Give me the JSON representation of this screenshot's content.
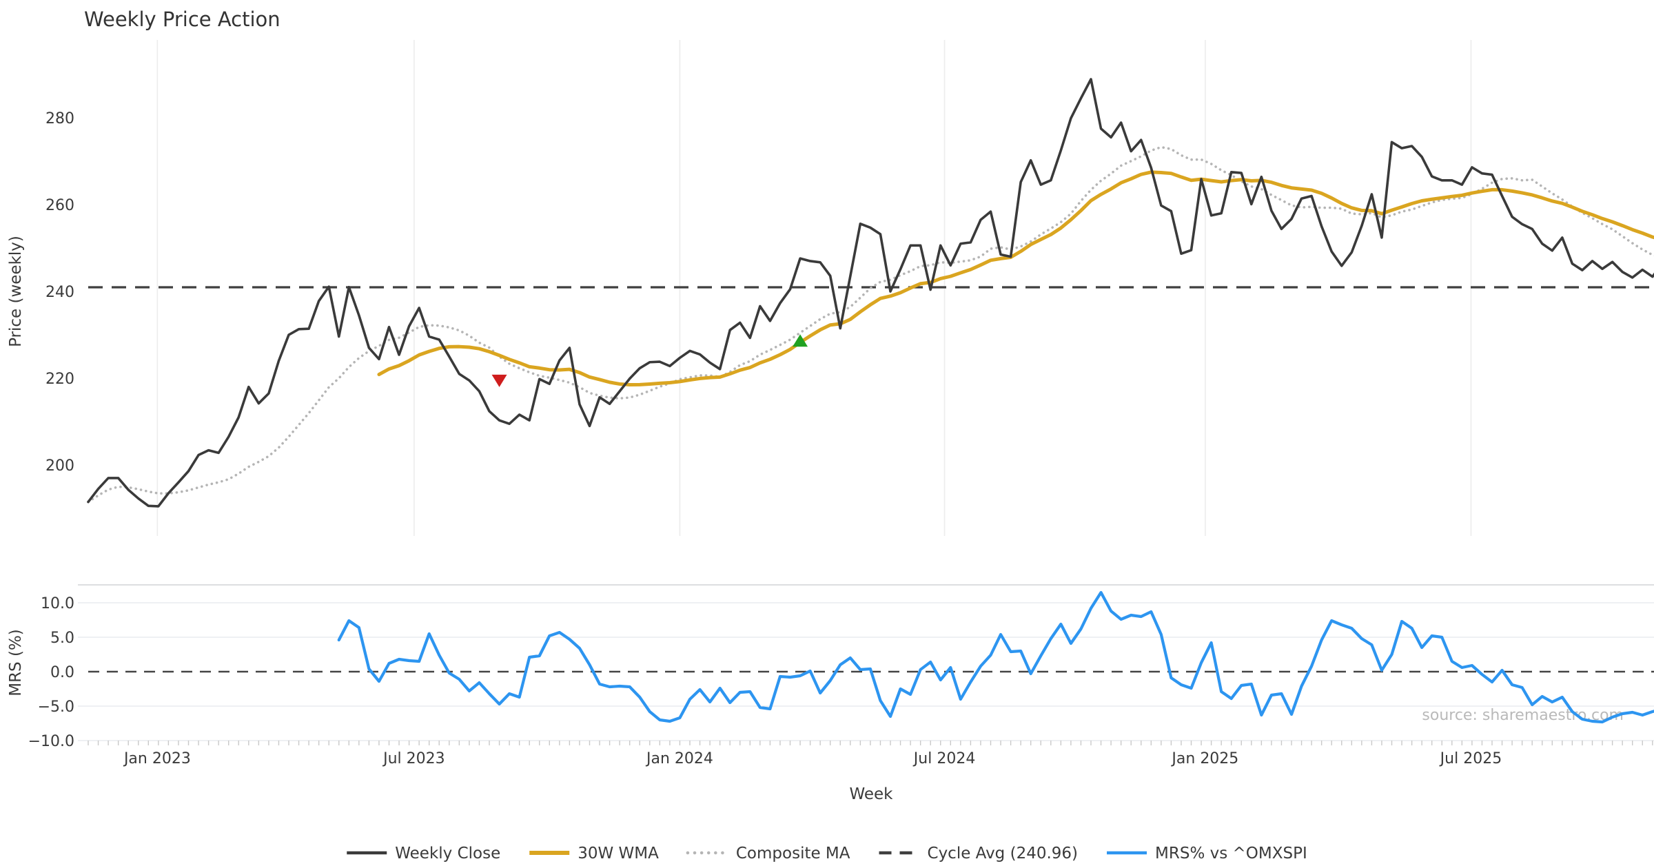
{
  "title": "Weekly Price Action",
  "source_note": "source: sharemaestro.com",
  "colors": {
    "weekly_close": "#3a3a3a",
    "wma30": "#DAA520",
    "composite_ma": "#b5b5b5",
    "cycle_avg": "#3f3f3f",
    "mrs": "#2d95f0",
    "sell_marker": "#cf1d1d",
    "buy_marker": "#21a121",
    "grid": "#ececec"
  },
  "legend": [
    {
      "label": "Weekly Close",
      "style": "solid",
      "color": "#3a3a3a"
    },
    {
      "label": "30W WMA",
      "style": "solid",
      "color": "#DAA520"
    },
    {
      "label": "Composite MA",
      "style": "dotted",
      "color": "#b5b5b5"
    },
    {
      "label": "Cycle Avg (240.96)",
      "style": "dashed",
      "color": "#3f3f3f"
    },
    {
      "label": "MRS% vs ^OMXSPI",
      "style": "solid",
      "color": "#2d95f0"
    }
  ],
  "chart_data": [
    {
      "type": "line",
      "title": "Weekly Price Action",
      "ylabel": "Price (weekly)",
      "frequency": "weekly",
      "start_date": "2022-11-14",
      "yticks": [
        200,
        220,
        240,
        260,
        280
      ],
      "ylim": [
        183,
        298
      ],
      "x_tick_labels": [
        "Jan 2023",
        "Jul 2023",
        "Jan 2024",
        "Jul 2024",
        "Jan 2025",
        "Jul 2025"
      ],
      "x_tick_weeks": [
        6.9,
        32.5,
        59.0,
        85.4,
        111.4,
        137.9
      ],
      "grid": "vertical-only",
      "legend_position": "lower center",
      "cycle_avg": 240.96,
      "series": [
        {
          "name": "Weekly Close",
          "values": [
            191.5,
            194.5,
            197.0,
            197.0,
            194.3,
            192.3,
            190.6,
            190.5,
            193.5,
            196.0,
            198.6,
            202.3,
            203.4,
            202.8,
            206.5,
            211.0,
            218.0,
            214.2,
            216.5,
            224.0,
            230.0,
            231.3,
            231.4,
            237.8,
            241.1,
            229.6,
            241.0,
            234.5,
            227.0,
            224.4,
            231.8,
            225.4,
            232.0,
            236.2,
            229.6,
            228.9,
            225.0,
            221.0,
            219.5,
            217.0,
            212.4,
            210.3,
            209.5,
            211.6,
            210.3,
            219.8,
            218.7,
            224.1,
            227.0,
            214.0,
            209.0,
            215.6,
            214.1,
            217.0,
            219.9,
            222.3,
            223.7,
            223.8,
            222.8,
            224.7,
            226.3,
            225.5,
            223.6,
            222.1,
            231.1,
            232.8,
            229.3,
            236.6,
            233.2,
            237.3,
            240.5,
            247.6,
            247.0,
            246.7,
            243.6,
            231.5,
            243.5,
            255.6,
            254.7,
            253.2,
            240.0,
            245.1,
            250.6,
            250.6,
            240.4,
            250.6,
            246.0,
            251.0,
            251.3,
            256.5,
            258.4,
            248.5,
            248.0,
            265.2,
            270.2,
            264.6,
            265.6,
            272.5,
            279.9,
            284.5,
            288.9,
            277.5,
            275.5,
            278.9,
            272.3,
            274.9,
            268.5,
            259.8,
            258.5,
            248.7,
            249.5,
            265.9,
            257.5,
            258.0,
            267.5,
            267.3,
            260.1,
            266.4,
            258.6,
            254.4,
            256.7,
            261.4,
            262.0,
            255.0,
            249.2,
            245.9,
            249.0,
            255.1,
            262.4,
            252.4,
            274.4,
            273.0,
            273.5,
            271.0,
            266.5,
            265.6,
            265.6,
            264.6,
            268.6,
            267.2,
            266.9,
            262.0,
            257.2,
            255.5,
            254.4,
            251.0,
            249.4,
            252.4,
            246.4,
            244.9,
            247.0,
            245.2,
            246.8,
            244.5,
            243.2,
            245.0,
            243.4,
            246.5
          ]
        },
        {
          "name": "30W WMA",
          "derived": "30-week weighted moving average of Weekly Close"
        },
        {
          "name": "Composite MA",
          "derived": "15-week simple moving average of Weekly Close"
        },
        {
          "name": "Cycle Avg",
          "constant": 240.96
        }
      ],
      "markers": [
        {
          "shape": "triangle-down",
          "color": "#cf1d1d",
          "week_index": 41,
          "value": 219.4
        },
        {
          "shape": "triangle-up",
          "color": "#21a121",
          "week_index": 71,
          "value": 228.7
        }
      ]
    },
    {
      "type": "line",
      "ylabel": "MRS (%)",
      "xlabel": "Week",
      "ytick_labels": [
        "10.0",
        "5.0",
        "0.0",
        "−5.0",
        "−10.0"
      ],
      "yticks": [
        10,
        5,
        0,
        -5,
        -10
      ],
      "ylim": [
        -10,
        12.6
      ],
      "zero_line": 0.0,
      "series": [
        {
          "name": "MRS% vs ^OMXSPI",
          "start_week_index": 25,
          "values": [
            4.6,
            7.4,
            6.4,
            0.4,
            -1.4,
            1.2,
            1.8,
            1.6,
            1.5,
            5.5,
            2.4,
            -0.2,
            -1.1,
            -2.8,
            -1.6,
            -3.2,
            -4.7,
            -3.2,
            -3.7,
            2.1,
            2.3,
            5.2,
            5.7,
            4.7,
            3.4,
            1.0,
            -1.8,
            -2.2,
            -2.1,
            -2.2,
            -3.7,
            -5.8,
            -7.0,
            -7.2,
            -6.7,
            -4.0,
            -2.6,
            -4.4,
            -2.4,
            -4.5,
            -3.0,
            -2.9,
            -5.2,
            -5.4,
            -0.7,
            -0.8,
            -0.6,
            0.1,
            -3.1,
            -1.3,
            1.0,
            2.0,
            0.3,
            0.4,
            -4.2,
            -6.5,
            -2.5,
            -3.3,
            0.3,
            1.4,
            -1.2,
            0.6,
            -4.0,
            -1.5,
            0.8,
            2.4,
            5.4,
            2.9,
            3.0,
            -0.3,
            2.3,
            4.8,
            6.9,
            4.1,
            6.2,
            9.2,
            11.5,
            8.8,
            7.6,
            8.2,
            8.0,
            8.7,
            5.4,
            -0.9,
            -1.9,
            -2.4,
            1.3,
            4.2,
            -2.9,
            -3.9,
            -2.0,
            -1.8,
            -6.3,
            -3.4,
            -3.2,
            -6.2,
            -2.1,
            0.8,
            4.6,
            7.4,
            6.8,
            6.3,
            4.8,
            3.9,
            0.2,
            2.5,
            7.3,
            6.3,
            3.5,
            5.2,
            5.0,
            1.5,
            0.6,
            0.9,
            -0.4,
            -1.5,
            0.2,
            -1.9,
            -2.3,
            -4.8,
            -3.6,
            -4.4,
            -3.7,
            -5.8,
            -6.9,
            -7.2,
            -7.3,
            -6.6,
            -6.1,
            -5.9,
            -6.3,
            -5.8,
            -5.4
          ]
        }
      ]
    }
  ]
}
